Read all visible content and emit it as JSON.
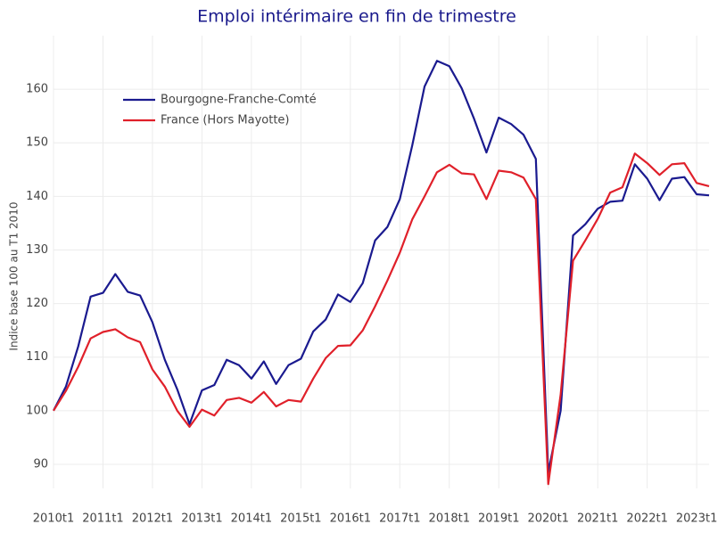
{
  "chart_data": {
    "type": "line",
    "title": "Emploi intérimaire en fin de trimestre",
    "y_label": "Indice base 100 au T1 2010",
    "categories": [
      "2010t1",
      null,
      null,
      null,
      "2011t1",
      null,
      null,
      null,
      "2012t1",
      null,
      null,
      null,
      "2013t1",
      null,
      null,
      null,
      "2014t1",
      null,
      null,
      null,
      "2015t1",
      null,
      null,
      null,
      "2016t1",
      null,
      null,
      null,
      "2017t1",
      null,
      null,
      null,
      "2018t1",
      null,
      null,
      null,
      "2019t1",
      null,
      null,
      null,
      "2020t1",
      null,
      null,
      null,
      "2021t1",
      null,
      null,
      null,
      "2022t1",
      null,
      null,
      null,
      "2023t1",
      null
    ],
    "series": [
      {
        "name": "Bourgogne-Franche-Comté",
        "color": "#1a1a8f",
        "values": [
          100,
          104.5,
          112,
          121.3,
          122,
          125.5,
          122.2,
          121.5,
          116.5,
          109.5,
          104,
          97.5,
          103.8,
          104.8,
          109.5,
          108.5,
          106,
          109.2,
          105,
          108.5,
          109.7,
          114.8,
          117,
          121.7,
          120.3,
          123.8,
          131.8,
          134.3,
          139.5,
          149.5,
          160.5,
          165.3,
          164.3,
          160.2,
          154.5,
          148.2,
          154.7,
          153.5,
          151.5,
          147,
          88.5,
          100,
          132.7,
          134.8,
          137.7,
          139,
          139.2,
          146,
          143.3,
          139.3,
          143.3,
          143.6,
          140.4,
          140.2
        ]
      },
      {
        "name": "France (Hors Mayotte)",
        "color": "#e0202a",
        "values": [
          100,
          103.7,
          108.2,
          113.5,
          114.7,
          115.2,
          113.7,
          112.8,
          107.7,
          104.5,
          100,
          97,
          100.2,
          99.1,
          102,
          102.4,
          101.5,
          103.5,
          100.8,
          102,
          101.7,
          106,
          109.8,
          112.1,
          112.2,
          115,
          119.5,
          124.3,
          129.5,
          135.7,
          140,
          144.5,
          145.9,
          144.3,
          144.1,
          139.5,
          144.8,
          144.5,
          143.5,
          139.5,
          86.3,
          103,
          128,
          131.8,
          135.8,
          140.7,
          141.7,
          148,
          146.2,
          144,
          146,
          146.2,
          142.5,
          141.9
        ]
      }
    ],
    "ylim": [
      85.5,
      170
    ],
    "yticks": [
      90,
      100,
      110,
      120,
      130,
      140,
      150,
      160
    ],
    "grid": true,
    "legend": "top-left"
  }
}
